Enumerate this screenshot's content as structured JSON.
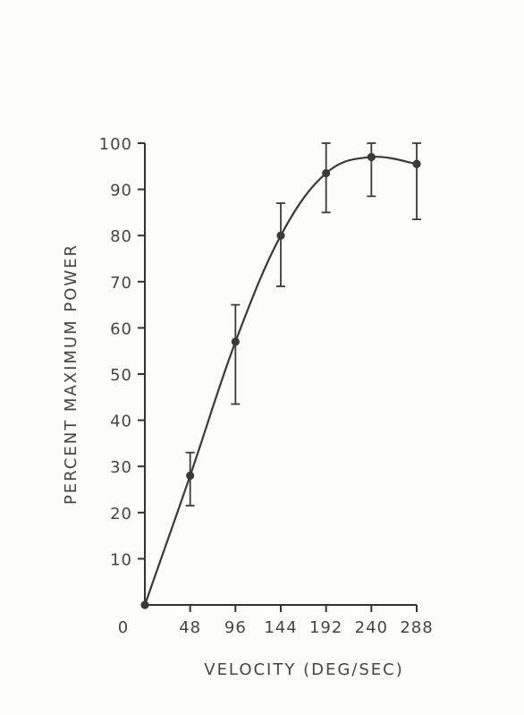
{
  "chart_data": {
    "type": "line",
    "title": "",
    "xlabel": "VELOCITY (DEG/SEC)",
    "ylabel": "PERCENT MAXIMUM POWER",
    "x_tick_labels": [
      "0",
      "48",
      "96",
      "144",
      "192",
      "240",
      "288"
    ],
    "y_tick_labels": [
      "10",
      "20",
      "30",
      "40",
      "50",
      "60",
      "70",
      "80",
      "90",
      "100"
    ],
    "xlim": [
      0,
      288
    ],
    "ylim": [
      0,
      100
    ],
    "grid": false,
    "x": [
      0,
      48,
      96,
      144,
      192,
      240,
      288
    ],
    "series": [
      {
        "values": [
          0,
          28,
          57,
          80,
          93.5,
          97,
          95.5
        ],
        "error_low": [
          0,
          21.5,
          43.5,
          69,
          85,
          88.5,
          83.5
        ],
        "error_high": [
          0,
          33,
          65,
          87,
          100,
          100,
          100
        ]
      }
    ],
    "colors": {
      "line": "#3a3a3a",
      "text": "#444444"
    }
  }
}
